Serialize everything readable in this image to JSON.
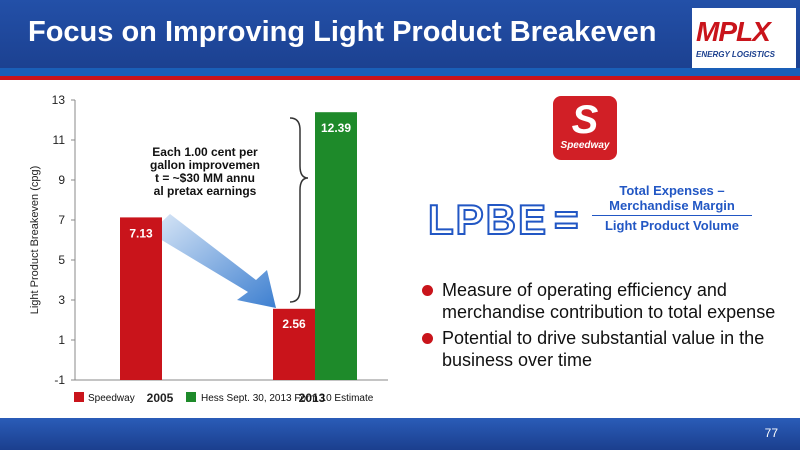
{
  "header": {
    "title": "Focus on Improving Light Product Breakeven"
  },
  "logo": {
    "text": "MPLX",
    "subtext": "ENERGY LOGISTICS"
  },
  "speedway_logo": {
    "letter": "S",
    "wordmark": "Speedway"
  },
  "formula": {
    "lhs": "LPBE",
    "equals": "=",
    "numerator": "Total Expenses – Merchandise Margin",
    "denominator": "Light Product Volume"
  },
  "bullets": [
    "Measure of operating efficiency and merchandise contribution to total expense",
    "Potential to drive substantial value in the business over time"
  ],
  "annotation": "Each 1.00 cent per gallon improvement = ~$30 MM annual pretax earnings",
  "footer": {
    "page": "77"
  },
  "colors": {
    "speedway": "#c9141b",
    "hess": "#1e8a2a",
    "accent": "#2257c4"
  },
  "chart_data": {
    "type": "bar",
    "ylabel": "Light Product Breakeven (cpg)",
    "ylim": [
      -1,
      13
    ],
    "yticks": [
      -1,
      1,
      3,
      5,
      7,
      9,
      11,
      13
    ],
    "categories": [
      "2005",
      "2013"
    ],
    "series": [
      {
        "name": "Speedway",
        "color": "#c9141b",
        "values": [
          7.13,
          2.56
        ]
      },
      {
        "name": "Hess Sept. 30, 2013 Form 10 Estimate",
        "color": "#1e8a2a",
        "values": [
          null,
          12.39
        ]
      }
    ],
    "data_labels": [
      "7.13",
      "2.56",
      "12.39"
    ],
    "grid": false,
    "legend": "bottom"
  }
}
